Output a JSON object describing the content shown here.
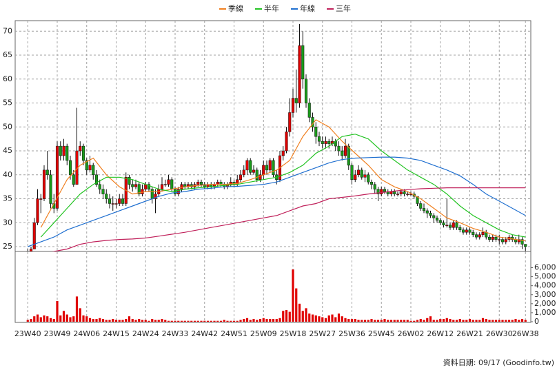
{
  "chart_data": [
    {
      "type": "candlestick",
      "categories": [
        "23W40",
        null,
        null,
        null,
        null,
        null,
        null,
        null,
        null,
        "23W49",
        null,
        null,
        null,
        null,
        null,
        null,
        null,
        null,
        "24W06",
        null,
        null,
        null,
        null,
        null,
        null,
        null,
        null,
        "24W15",
        null,
        null,
        null,
        null,
        null,
        null,
        null,
        null,
        "24W24",
        null,
        null,
        null,
        null,
        null,
        null,
        null,
        null,
        "24W33",
        null,
        null,
        null,
        null,
        null,
        null,
        null,
        null,
        "24W42",
        null,
        null,
        null,
        null,
        null,
        null,
        null,
        null,
        "24W51",
        null,
        null,
        null,
        null,
        null,
        null,
        null,
        null,
        "25W09",
        null,
        null,
        null,
        null,
        null,
        null,
        null,
        null,
        "25W18",
        null,
        null,
        null,
        null,
        null,
        null,
        null,
        null,
        "25W27",
        null,
        null,
        null,
        null,
        null,
        null,
        null,
        null,
        "25W36",
        null,
        null,
        null,
        null,
        null,
        null,
        null,
        null,
        "25W45",
        null,
        null,
        null,
        null,
        null,
        null,
        null,
        null,
        "26W02",
        null,
        null,
        null,
        null,
        null,
        null,
        null,
        null,
        "26W12",
        null,
        null,
        null,
        null,
        null,
        null,
        null,
        null,
        "26W21",
        null,
        null,
        null,
        null,
        null,
        null,
        null,
        null,
        "26W30",
        null,
        null,
        null,
        null,
        null,
        null,
        null,
        "26W38"
      ],
      "open": [
        23.8,
        24,
        24.5,
        30,
        35,
        35,
        41,
        40,
        34,
        33,
        46,
        44,
        46,
        43,
        40,
        38,
        45,
        46,
        43,
        41,
        42,
        40,
        38,
        37,
        36,
        35,
        34,
        34,
        34,
        35,
        34,
        39.5,
        38,
        37.5,
        38,
        36,
        37,
        38,
        37,
        35,
        36,
        37,
        38,
        38,
        39,
        37,
        36,
        37,
        38,
        37.5,
        38,
        37.5,
        38,
        38.5,
        38,
        37.5,
        38,
        37.5,
        38,
        38.5,
        38,
        37.5,
        38,
        38.5,
        38,
        39,
        40,
        41,
        43,
        40.5,
        41,
        39,
        40,
        42,
        41,
        43,
        40,
        39,
        44,
        45,
        49,
        53,
        56,
        55,
        67,
        60,
        55,
        52,
        50,
        48,
        47,
        46.5,
        47,
        46.5,
        47,
        46,
        45,
        44,
        46,
        42,
        39,
        40,
        41,
        39.5,
        40,
        38.5,
        38,
        37,
        36,
        37,
        36.5,
        36,
        36.5,
        36,
        36,
        36.5,
        36,
        36,
        36,
        35.5,
        34,
        33,
        32.5,
        32,
        31.5,
        31,
        30.5,
        30,
        29.5,
        29.5,
        29,
        30,
        29,
        28.5,
        28,
        28.5,
        28,
        27.5,
        27,
        27.5,
        28,
        27,
        26.5,
        27,
        26.5,
        26.5,
        26,
        26.5,
        27,
        26.5,
        26,
        26.5,
        25.5
      ],
      "high": [
        24.5,
        25,
        31,
        37,
        36,
        42,
        45,
        41,
        36,
        47,
        47,
        47.5,
        46.5,
        44,
        41,
        54,
        47,
        46.5,
        43.5,
        44,
        42.5,
        41,
        39,
        38,
        37,
        36,
        35.5,
        35,
        36,
        36,
        40.5,
        40,
        39,
        39,
        38.5,
        38,
        38.5,
        38.5,
        37.5,
        37,
        38,
        39.5,
        39,
        40,
        39.5,
        37.5,
        37.5,
        38.5,
        38.5,
        38.5,
        38.5,
        38.5,
        39,
        39,
        38.5,
        38.5,
        38.5,
        38.5,
        39,
        39,
        38.5,
        38.5,
        39.5,
        39,
        40,
        41,
        42,
        43.5,
        43.5,
        42,
        41.5,
        41,
        43,
        43,
        43.5,
        43.5,
        41,
        45,
        46,
        50,
        56,
        58,
        62,
        71.5,
        70,
        61,
        56,
        53,
        51,
        49,
        48,
        48,
        47.5,
        48,
        47.5,
        47,
        46,
        47.5,
        46.5,
        42.5,
        41,
        42,
        41.5,
        41,
        40.5,
        39,
        38.5,
        37.5,
        37.5,
        37.5,
        37,
        37,
        37,
        36.5,
        37,
        37,
        36.5,
        36.5,
        36.5,
        35.5,
        34.5,
        34,
        33,
        32.5,
        32,
        31.5,
        31,
        30.5,
        35,
        30,
        30.5,
        30.5,
        29.5,
        29,
        29,
        29,
        28.5,
        28,
        28,
        29,
        28.5,
        27.5,
        27.5,
        27.5,
        27.5,
        27,
        27,
        27.5,
        27.5,
        27,
        27.5,
        27,
        25.5
      ],
      "low": [
        23.3,
        23.8,
        24.5,
        29.5,
        32,
        34.5,
        39,
        33,
        32,
        32.5,
        43,
        43,
        42,
        39,
        37.5,
        38,
        44,
        42,
        40,
        40.5,
        39,
        37.5,
        36,
        35,
        34,
        33,
        32.5,
        33,
        33.5,
        33.5,
        33.5,
        37,
        36.5,
        37,
        35.5,
        35.5,
        36.5,
        36.5,
        34,
        32,
        35.5,
        36.5,
        37.5,
        37.5,
        36.5,
        35.5,
        35.5,
        36.5,
        37,
        37,
        37,
        37,
        37.5,
        37.5,
        37,
        37,
        37,
        37,
        37.5,
        37.5,
        37,
        37,
        37.5,
        37.5,
        37.5,
        38.5,
        39.5,
        40,
        40,
        40,
        38.5,
        38.5,
        39,
        40,
        40.5,
        39.5,
        38,
        38.5,
        43,
        44.5,
        48,
        52,
        53,
        54,
        58,
        54,
        51,
        49,
        46.5,
        46,
        45.5,
        45.5,
        45.5,
        46,
        45,
        44,
        43,
        43.5,
        41,
        38,
        38.5,
        39.5,
        39,
        38.5,
        38,
        37,
        36,
        34.5,
        35.5,
        36,
        35.5,
        35.5,
        35.5,
        35.5,
        35.5,
        35.5,
        35.5,
        35.5,
        35,
        33.5,
        32.5,
        32,
        31,
        31,
        30,
        30,
        29.5,
        29,
        29,
        28.5,
        28.5,
        28.5,
        28,
        27.5,
        27.5,
        27.5,
        27,
        26.5,
        26.5,
        27,
        26.5,
        26,
        26,
        26,
        25.5,
        25.5,
        25.5,
        26,
        26,
        25.5,
        25.5,
        24.5,
        24
      ],
      "close": [
        24,
        24.5,
        30,
        35,
        35,
        41,
        40,
        34,
        33,
        46,
        44,
        46,
        43,
        40,
        38,
        45,
        46,
        43,
        41,
        42,
        40,
        38,
        37,
        36,
        35,
        34,
        34,
        34,
        35,
        34,
        39.5,
        38,
        37.5,
        38,
        36,
        37,
        38,
        37,
        35,
        36,
        37,
        38,
        38,
        39,
        37,
        36,
        37,
        38,
        37.5,
        38,
        37.5,
        38,
        38.5,
        38,
        37.5,
        38,
        37.5,
        38,
        38.5,
        38,
        37.5,
        38,
        38.5,
        38,
        39,
        40,
        41,
        43,
        40.5,
        41,
        39,
        40,
        42,
        41,
        43,
        40,
        39,
        44,
        45,
        49,
        53,
        56,
        55,
        67,
        60,
        55,
        52,
        50,
        48,
        47,
        46.5,
        47,
        46.5,
        47,
        46,
        45,
        44,
        46,
        42,
        39,
        40,
        41,
        39.5,
        40,
        38.5,
        38,
        37,
        36,
        37,
        36.5,
        36,
        36.5,
        36,
        36,
        36.5,
        36,
        36,
        36,
        35.5,
        34,
        33,
        32.5,
        32,
        31.5,
        31,
        30.5,
        30,
        29.5,
        29.5,
        29,
        30,
        29,
        28.5,
        28,
        28.5,
        28,
        27.5,
        27,
        27.5,
        28,
        27,
        26.5,
        27,
        26.5,
        26.5,
        26,
        26.5,
        27,
        26.5,
        26,
        26.5,
        25.5,
        25
      ],
      "up_color": "#e00000",
      "down_color": "#1a9a1a",
      "series": [
        {
          "name": "季線",
          "color": "#f07f1f",
          "x": [
            4,
            8,
            12,
            16,
            20,
            24,
            28,
            32,
            36,
            40,
            44,
            48,
            52,
            56,
            60,
            64,
            68,
            72,
            76,
            80,
            84,
            88,
            92,
            96,
            100,
            104,
            108,
            112,
            116,
            120,
            124,
            128,
            132,
            136,
            140,
            144,
            148,
            152
          ],
          "values": [
            29,
            34,
            39,
            42,
            43.5,
            40,
            37.5,
            36,
            36.5,
            36.5,
            37,
            37.5,
            37.8,
            38,
            38,
            38.2,
            39,
            40,
            41,
            43,
            48,
            51.5,
            50,
            47,
            44.5,
            42,
            39,
            37.5,
            36.5,
            35,
            33,
            31,
            30,
            28.8,
            28,
            27,
            26.6,
            26.2
          ]
        },
        {
          "name": "半年",
          "color": "#22c322",
          "x": [
            4,
            8,
            12,
            16,
            20,
            24,
            28,
            32,
            36,
            40,
            44,
            48,
            52,
            56,
            60,
            64,
            68,
            72,
            76,
            80,
            84,
            88,
            92,
            96,
            100,
            104,
            108,
            112,
            116,
            120,
            124,
            128,
            132,
            136,
            140,
            144,
            148,
            152
          ],
          "values": [
            27,
            30,
            33,
            36,
            38,
            39.5,
            39.5,
            39,
            38,
            37,
            36.5,
            37,
            37.3,
            37.5,
            37.8,
            38,
            38.5,
            39,
            39.5,
            40.5,
            42,
            44.5,
            46,
            48,
            48.5,
            47.5,
            45,
            43,
            41,
            39.5,
            38,
            36,
            33.5,
            31.5,
            30,
            28.5,
            27.5,
            27
          ]
        },
        {
          "name": "年線",
          "color": "#1f6fd0",
          "x": [
            0,
            4,
            8,
            12,
            16,
            20,
            24,
            28,
            32,
            36,
            40,
            44,
            48,
            52,
            56,
            60,
            64,
            68,
            72,
            76,
            80,
            84,
            88,
            92,
            96,
            100,
            104,
            108,
            112,
            116,
            120,
            124,
            128,
            132,
            136,
            140,
            144,
            148,
            152
          ],
          "values": [
            25,
            26,
            27,
            28.5,
            29.5,
            30.5,
            31.5,
            32.5,
            33.5,
            34.5,
            35.5,
            36.2,
            36.5,
            37,
            37.2,
            37.5,
            37.6,
            37.8,
            38,
            38.5,
            39.5,
            40.5,
            41.5,
            42.5,
            43.2,
            43.5,
            43.6,
            43.7,
            43.7,
            43.5,
            43,
            42,
            41,
            39.8,
            38,
            36,
            34.5,
            33,
            31.5
          ]
        },
        {
          "name": "三年",
          "color": "#c0205a",
          "x": [
            0,
            4,
            8,
            12,
            16,
            20,
            24,
            28,
            32,
            36,
            40,
            44,
            48,
            52,
            56,
            60,
            64,
            68,
            72,
            76,
            80,
            84,
            88,
            92,
            96,
            100,
            104,
            108,
            112,
            116,
            120,
            124,
            128,
            132,
            136,
            140,
            144,
            148,
            152
          ],
          "values": [
            23,
            23.5,
            24,
            24.5,
            25.5,
            26,
            26.3,
            26.5,
            26.6,
            26.8,
            27.2,
            27.6,
            28,
            28.5,
            29,
            29.5,
            30,
            30.5,
            31,
            31.5,
            32.5,
            33.5,
            34,
            35,
            35.3,
            35.6,
            36,
            36.3,
            36.6,
            36.9,
            37.1,
            37.2,
            37.3,
            37.3,
            37.3,
            37.3,
            37.3,
            37.3,
            37.3
          ]
        }
      ],
      "ylim": [
        24,
        72.2
      ],
      "yticks": [
        25,
        30,
        35,
        40,
        45,
        50,
        55,
        60,
        65,
        70
      ],
      "grid": true
    },
    {
      "type": "bar",
      "color": "#e00000",
      "values": [
        200,
        300,
        600,
        800,
        500,
        700,
        600,
        400,
        300,
        2300,
        700,
        1200,
        800,
        500,
        600,
        2800,
        1500,
        700,
        600,
        400,
        300,
        300,
        400,
        300,
        200,
        200,
        300,
        200,
        200,
        200,
        300,
        600,
        300,
        200,
        300,
        200,
        200,
        100,
        300,
        200,
        200,
        300,
        200,
        100,
        100,
        100,
        100,
        100,
        100,
        100,
        100,
        100,
        100,
        100,
        100,
        100,
        100,
        100,
        100,
        100,
        200,
        100,
        100,
        100,
        100,
        200,
        300,
        400,
        200,
        300,
        200,
        300,
        400,
        300,
        300,
        300,
        300,
        400,
        1200,
        1300,
        1100,
        5800,
        3700,
        2000,
        1200,
        1500,
        900,
        800,
        700,
        600,
        500,
        400,
        700,
        800,
        500,
        900,
        600,
        400,
        300,
        300,
        300,
        200,
        200,
        200,
        200,
        300,
        200,
        200,
        200,
        300,
        200,
        200,
        200,
        200,
        200,
        200,
        200,
        100,
        100,
        200,
        300,
        200,
        400,
        600,
        200,
        200,
        300,
        300,
        400,
        300,
        200,
        200,
        300,
        200,
        200,
        300,
        200,
        200,
        200,
        400,
        300,
        200,
        200,
        200,
        200,
        200,
        200,
        200,
        200,
        300,
        200,
        300,
        200
      ],
      "ylim": [
        0,
        7800
      ],
      "yticks": [
        0,
        {
          "value": 1000,
          "label": "1,000"
        },
        {
          "value": 2000,
          "label": "2,000"
        },
        {
          "value": 3000,
          "label": "3,000"
        },
        {
          "value": 4000,
          "label": "4,000"
        },
        {
          "value": 5000,
          "label": "5,000"
        },
        {
          "value": 6000,
          "label": "6,000"
        }
      ]
    }
  ],
  "footer": "資料日期: 09/17  (Goodinfo.tw)"
}
